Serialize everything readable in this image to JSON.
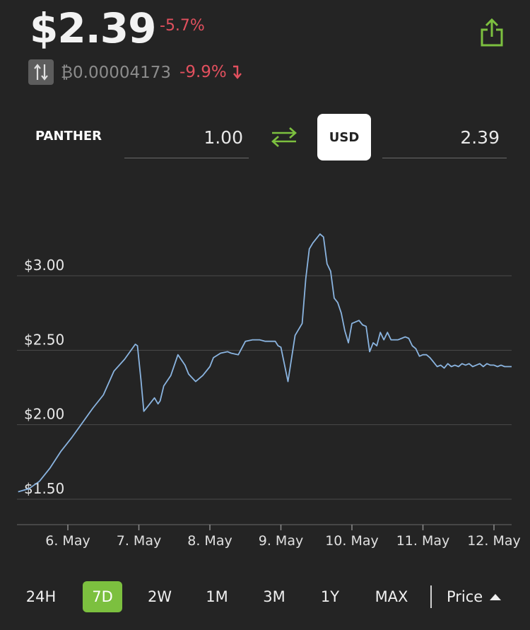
{
  "header": {
    "price": "$2.39",
    "change_pct": "-5.7%",
    "btc_price": "₿0.00004173",
    "btc_change_pct": "-9.9%",
    "btc_change_arrow": "↧"
  },
  "icons": {
    "share": "share-icon",
    "swap_vertical": "swap-vertical-icon",
    "swap_horizontal": "swap-horizontal-icon"
  },
  "converter": {
    "token_label": "PANTHER",
    "token_amount": "1.00",
    "currency_button": "USD",
    "currency_amount": "2.39"
  },
  "colors": {
    "background": "#242424",
    "negative": "#e2505e",
    "accent_green": "#7cc03f",
    "line": "#8ab4e0",
    "grid": "#4a4a4a"
  },
  "chart_data": {
    "type": "line",
    "ylim": [
      1.45,
      3.35
    ],
    "yticks": [
      "$3.00",
      "$2.50",
      "$2.00",
      "$1.50"
    ],
    "ytick_values": [
      3.0,
      2.5,
      2.0,
      1.5
    ],
    "xticks": [
      "6. May",
      "7. May",
      "8. May",
      "9. May",
      "10. May",
      "11. May",
      "12. May"
    ],
    "xtick_values": [
      1,
      2,
      3,
      4,
      5,
      6,
      7
    ],
    "series": [
      {
        "x": [
          0.3,
          0.45,
          0.6,
          0.75,
          0.9,
          1.05,
          1.2,
          1.35,
          1.5,
          1.65,
          1.8,
          1.95,
          1.98,
          2.03,
          2.07,
          2.12,
          2.17,
          2.22,
          2.27,
          2.3,
          2.35,
          2.45,
          2.55,
          2.65,
          2.7,
          2.8,
          2.9,
          3.0,
          3.05,
          3.15,
          3.25,
          3.3,
          3.4,
          3.5,
          3.6,
          3.7,
          3.78,
          3.85,
          3.92,
          3.96,
          4.0,
          4.1,
          4.2,
          4.3,
          4.35,
          4.4,
          4.45,
          4.55,
          4.6,
          4.65,
          4.7,
          4.75,
          4.8,
          4.85,
          4.9,
          4.95,
          5.0,
          5.05,
          5.1,
          5.15,
          5.2,
          5.25,
          5.3,
          5.35,
          5.4,
          5.45,
          5.5,
          5.55,
          5.6,
          5.65,
          5.7,
          5.75,
          5.8,
          5.85,
          5.9,
          5.95,
          6.0,
          6.05,
          6.1,
          6.15,
          6.2,
          6.25,
          6.3,
          6.35,
          6.4,
          6.45,
          6.5,
          6.55,
          6.6,
          6.65,
          6.7,
          6.75,
          6.8,
          6.85,
          6.9,
          6.95,
          7.0,
          7.05,
          7.1,
          7.15,
          7.2,
          7.25
        ],
        "y": [
          1.55,
          1.57,
          1.62,
          1.71,
          1.82,
          1.91,
          2.01,
          2.11,
          2.2,
          2.36,
          2.44,
          2.54,
          2.53,
          2.3,
          2.09,
          2.12,
          2.15,
          2.18,
          2.14,
          2.16,
          2.26,
          2.33,
          2.47,
          2.4,
          2.34,
          2.29,
          2.33,
          2.39,
          2.45,
          2.48,
          2.49,
          2.48,
          2.47,
          2.56,
          2.57,
          2.57,
          2.56,
          2.56,
          2.56,
          2.53,
          2.52,
          2.29,
          2.6,
          2.68,
          2.98,
          3.18,
          3.22,
          3.28,
          3.26,
          3.08,
          3.03,
          2.85,
          2.82,
          2.75,
          2.63,
          2.55,
          2.68,
          2.69,
          2.7,
          2.67,
          2.66,
          2.49,
          2.55,
          2.53,
          2.62,
          2.57,
          2.62,
          2.57,
          2.57,
          2.57,
          2.58,
          2.59,
          2.58,
          2.53,
          2.51,
          2.46,
          2.47,
          2.47,
          2.45,
          2.42,
          2.39,
          2.4,
          2.38,
          2.41,
          2.39,
          2.4,
          2.39,
          2.41,
          2.4,
          2.41,
          2.39,
          2.4,
          2.41,
          2.39,
          2.41,
          2.4,
          2.4,
          2.39,
          2.4,
          2.39,
          2.39,
          2.39
        ]
      }
    ],
    "grid": true
  },
  "ranges": {
    "options": [
      "24H",
      "7D",
      "2W",
      "1M",
      "3M",
      "1Y",
      "MAX"
    ],
    "active": "7D",
    "mode_label": "Price"
  }
}
